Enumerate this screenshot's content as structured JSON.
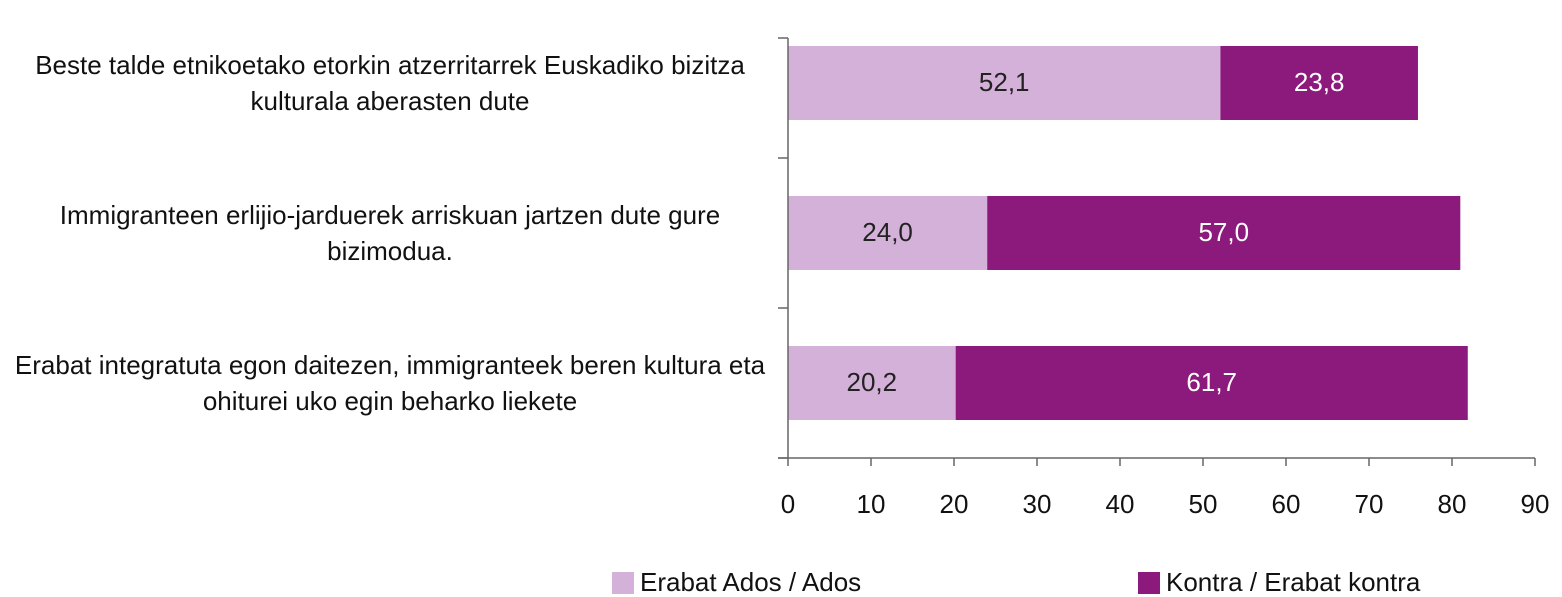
{
  "chart_data": {
    "type": "stacked_barh",
    "categories": [
      "Beste talde etnikoetako etorkin atzerritarrek Euskadiko bizitza kulturala aberasten dute",
      "Immigranteen erlijio-jarduerek arriskuan jartzen dute gure bizimodua.",
      "Erabat integratuta egon daitezen, immigranteek beren kultura eta ohiturei uko egin beharko liekete"
    ],
    "series": [
      {
        "name": "Erabat Ados / Ados",
        "color": "#d4b1d9",
        "label_color": "#222222",
        "values": [
          52.1,
          24.0,
          20.2
        ],
        "value_labels": [
          "52,1",
          "24,0",
          "20,2"
        ]
      },
      {
        "name": "Kontra / Erabat kontra",
        "color": "#8c1a7c",
        "label_color": "#ffffff",
        "values": [
          23.8,
          57.0,
          61.7
        ],
        "value_labels": [
          "23,8",
          "57,0",
          "61,7"
        ]
      }
    ],
    "xlim": [
      0,
      90
    ],
    "xticks": [
      0,
      10,
      20,
      30,
      40,
      50,
      60,
      70,
      80,
      90
    ]
  }
}
